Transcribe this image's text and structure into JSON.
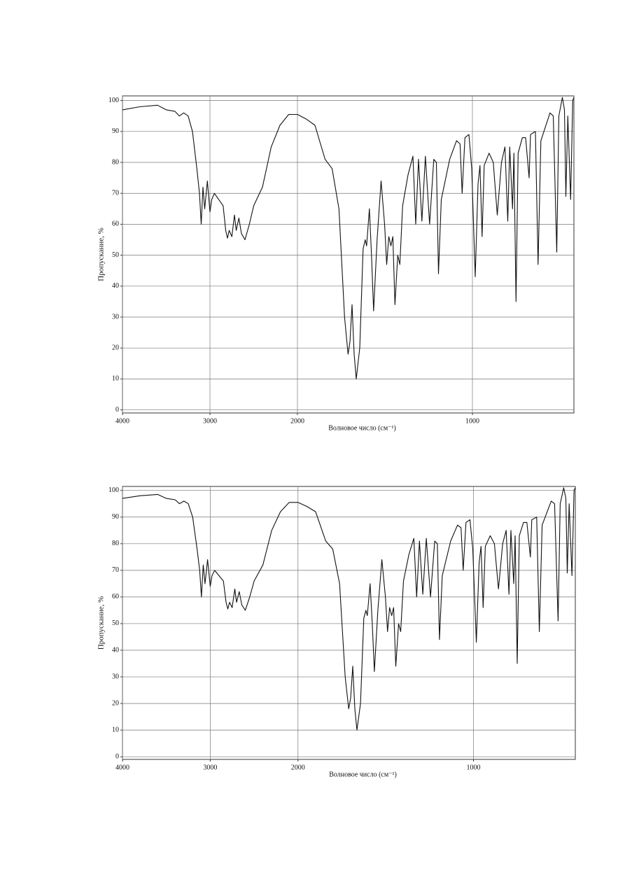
{
  "chart_data": [
    {
      "type": "line",
      "xlabel": "Волновое число (см⁻¹)",
      "ylabel": "Пропускание, %",
      "xlim": [
        4000,
        420
      ],
      "ylim": [
        -1,
        101.5
      ],
      "x_scale_break": 2000,
      "xticks": [
        4000,
        3000,
        2000,
        1000
      ],
      "yticks": [
        0,
        10,
        20,
        30,
        40,
        50,
        60,
        70,
        80,
        90,
        100
      ],
      "grid": true,
      "color": "#111111",
      "x": [
        4000,
        3800,
        3600,
        3500,
        3400,
        3350,
        3300,
        3250,
        3200,
        3150,
        3120,
        3100,
        3080,
        3060,
        3030,
        3000,
        2980,
        2950,
        2900,
        2850,
        2820,
        2800,
        2780,
        2750,
        2720,
        2700,
        2670,
        2640,
        2600,
        2550,
        2500,
        2400,
        2300,
        2200,
        2100,
        2000,
        1950,
        1900,
        1842,
        1802,
        1763,
        1731,
        1711,
        1700,
        1688,
        1676,
        1664,
        1644,
        1625,
        1613,
        1605,
        1589,
        1577,
        1565,
        1545,
        1522,
        1502,
        1490,
        1478,
        1466,
        1455,
        1443,
        1427,
        1415,
        1399,
        1368,
        1340,
        1324,
        1308,
        1289,
        1269,
        1245,
        1221,
        1206,
        1194,
        1178,
        1130,
        1091,
        1071,
        1059,
        1043,
        1020,
        1004,
        984,
        968,
        957,
        945,
        933,
        905,
        881,
        858,
        834,
        814,
        798,
        787,
        771,
        763,
        751,
        739,
        715,
        696,
        676,
        668,
        640,
        625,
        609,
        557,
        538,
        518,
        506,
        486,
        474,
        466,
        455,
        439,
        427,
        420
      ],
      "values": [
        97,
        98,
        98.5,
        97,
        96.5,
        95,
        96,
        95,
        90,
        78,
        70,
        60,
        72,
        65,
        74,
        64,
        68,
        70,
        68,
        66,
        58,
        55.5,
        58,
        56,
        63,
        58,
        62,
        57,
        55,
        60,
        66,
        72,
        85,
        92,
        95.5,
        95.5,
        94,
        92,
        81,
        78,
        65,
        30,
        18,
        22,
        34,
        18,
        10,
        20,
        52,
        55,
        53,
        65,
        50,
        32,
        55,
        74,
        60,
        47,
        56,
        53,
        56,
        34,
        50,
        47,
        66,
        76,
        82,
        60,
        81,
        61,
        82,
        60,
        81,
        80,
        44,
        68,
        81,
        87,
        86,
        70,
        88,
        89,
        78,
        43,
        73,
        79,
        56,
        79,
        83,
        80,
        63,
        80,
        85,
        61,
        85,
        65,
        83,
        35,
        83,
        88,
        88,
        75,
        89,
        90,
        47,
        87,
        96,
        95,
        51,
        95,
        101,
        97,
        69,
        95,
        68,
        100,
        101
      ]
    },
    {
      "type": "line",
      "xlabel": "Волновое число (см⁻¹)",
      "ylabel": "Пропускание, %",
      "xlim": [
        4000,
        420
      ],
      "ylim": [
        -1,
        101.5
      ],
      "x_scale_break": 2000,
      "xticks": [
        4000,
        3000,
        2000,
        1000
      ],
      "yticks": [
        0,
        10,
        20,
        30,
        40,
        50,
        60,
        70,
        80,
        90,
        100
      ],
      "grid": true,
      "color": "#111111",
      "x": [
        4000,
        3800,
        3600,
        3500,
        3400,
        3350,
        3300,
        3250,
        3200,
        3150,
        3120,
        3100,
        3080,
        3060,
        3030,
        3000,
        2980,
        2950,
        2900,
        2850,
        2820,
        2800,
        2780,
        2750,
        2720,
        2700,
        2670,
        2640,
        2600,
        2550,
        2500,
        2400,
        2300,
        2200,
        2100,
        2000,
        1950,
        1900,
        1842,
        1802,
        1763,
        1731,
        1711,
        1700,
        1688,
        1676,
        1664,
        1644,
        1625,
        1613,
        1605,
        1589,
        1577,
        1565,
        1545,
        1522,
        1502,
        1490,
        1478,
        1466,
        1455,
        1443,
        1427,
        1415,
        1399,
        1368,
        1340,
        1324,
        1308,
        1289,
        1269,
        1245,
        1221,
        1206,
        1194,
        1178,
        1130,
        1091,
        1071,
        1059,
        1043,
        1020,
        1004,
        984,
        968,
        957,
        945,
        933,
        905,
        881,
        858,
        834,
        814,
        798,
        787,
        771,
        763,
        751,
        739,
        715,
        696,
        676,
        668,
        640,
        625,
        609,
        557,
        538,
        518,
        506,
        486,
        474,
        466,
        455,
        439,
        427,
        420
      ],
      "values": [
        97,
        98,
        98.5,
        97,
        96.5,
        95,
        96,
        95,
        90,
        78,
        70,
        60,
        72,
        65,
        74,
        64,
        68,
        70,
        68,
        66,
        58,
        55.5,
        58,
        56,
        63,
        58,
        62,
        57,
        55,
        60,
        66,
        72,
        85,
        92,
        95.5,
        95.5,
        94,
        92,
        81,
        78,
        65,
        30,
        18,
        22,
        34,
        18,
        10,
        20,
        52,
        55,
        53,
        65,
        50,
        32,
        55,
        74,
        60,
        47,
        56,
        53,
        56,
        34,
        50,
        47,
        66,
        76,
        82,
        60,
        81,
        61,
        82,
        60,
        81,
        80,
        44,
        68,
        81,
        87,
        86,
        70,
        88,
        89,
        78,
        43,
        73,
        79,
        56,
        79,
        83,
        80,
        63,
        80,
        85,
        61,
        85,
        65,
        83,
        35,
        83,
        88,
        88,
        75,
        89,
        90,
        47,
        87,
        96,
        95,
        51,
        95,
        101,
        97,
        69,
        95,
        68,
        100,
        101
      ]
    }
  ]
}
